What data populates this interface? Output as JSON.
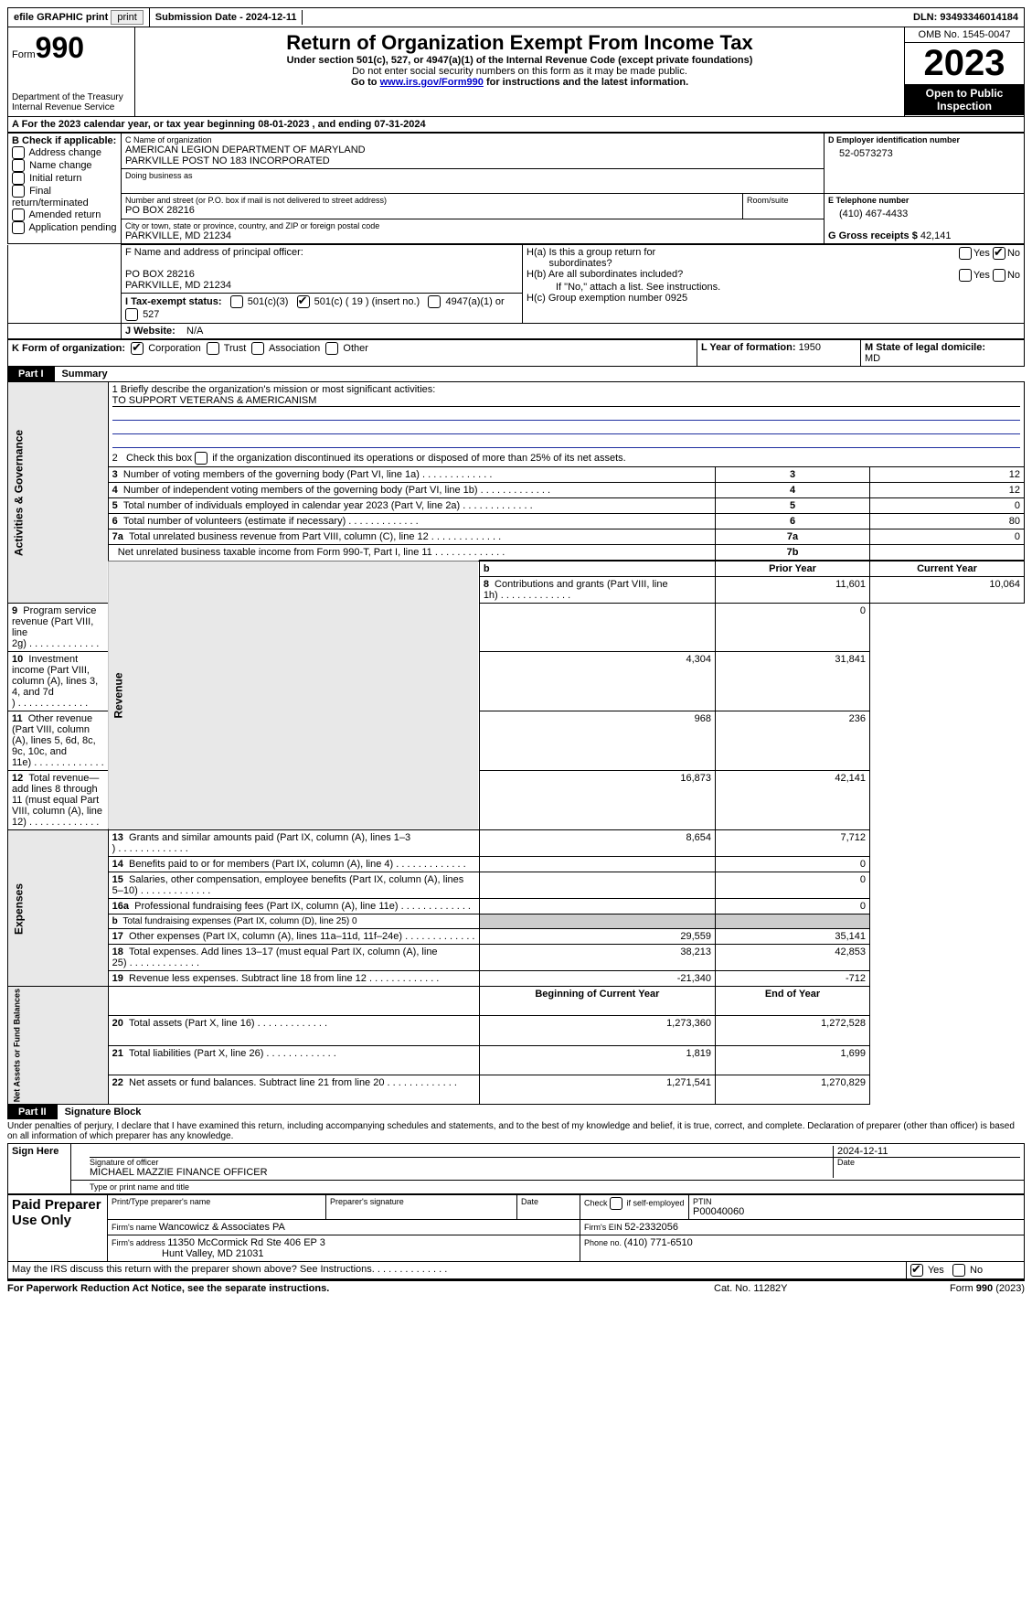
{
  "top": {
    "efile": "efile GRAPHIC print",
    "submission_label": "Submission Date - ",
    "submission_date": "2024-12-11",
    "dln_label": "DLN: ",
    "dln": "93493346014184"
  },
  "hdr": {
    "form_word": "Form",
    "form_num": "990",
    "dept1": "Department of the Treasury",
    "dept2": "Internal Revenue Service",
    "title": "Return of Organization Exempt From Income Tax",
    "sub1": "Under section 501(c), 527, or 4947(a)(1) of the Internal Revenue Code (except private foundations)",
    "sub2": "Do not enter social security numbers on this form as it may be made public.",
    "sub3a": "Go to ",
    "sub3link": "www.irs.gov/Form990",
    "sub3b": " for instructions and the latest information.",
    "omb": "OMB No. 1545-0047",
    "year": "2023",
    "open": "Open to Public Inspection"
  },
  "A": {
    "line": "A For the 2023 calendar year, or tax year beginning ",
    "begin": "08-01-2023",
    "mid": "   , and ending ",
    "end": "07-31-2024"
  },
  "B": {
    "hdr": "B Check if applicable:",
    "opts": [
      "Address change",
      "Name change",
      "Initial return",
      "Final return/terminated",
      "Amended return",
      "Application pending"
    ]
  },
  "C": {
    "name_lbl": "C Name of organization",
    "name1": "AMERICAN LEGION DEPARTMENT OF MARYLAND",
    "name2": "PARKVILLE POST NO 183 INCORPORATED",
    "dba": "Doing business as",
    "street_lbl": "Number and street (or P.O. box if mail is not delivered to street address)",
    "room_lbl": "Room/suite",
    "street": "PO BOX 28216",
    "city_lbl": "City or town, state or province, country, and ZIP or foreign postal code",
    "city": "PARKVILLE, MD  21234"
  },
  "D": {
    "lbl": "D Employer identification number",
    "val": "52-0573273"
  },
  "E": {
    "lbl": "E Telephone number",
    "val": "(410) 467-4433"
  },
  "G": {
    "lbl": "G Gross receipts $ ",
    "val": "42,141"
  },
  "F": {
    "lbl": "F  Name and address of principal officer:",
    "l1": "PO BOX 28216",
    "l2": "PARKVILLE, MD  21234"
  },
  "H": {
    "a1": "H(a)  Is this a group return for",
    "a2": "subordinates?",
    "b1": "H(b)  Are all subordinates included?",
    "bnote": "If \"No,\" attach a list. See instructions.",
    "c": "H(c)  Group exemption number   ",
    "cval": "0925",
    "yes": "Yes",
    "no": "No"
  },
  "I": {
    "lbl": "I    Tax-exempt status:",
    "o1": "501(c)(3)",
    "o2a": "501(c) ( ",
    "o2n": "19",
    "o2b": " ) (insert no.)",
    "o3": "4947(a)(1) or",
    "o4": "527"
  },
  "J": {
    "lbl": "J    Website: ",
    "val": "N/A"
  },
  "K": {
    "lbl": "K Form of organization:",
    "o1": "Corporation",
    "o2": "Trust",
    "o3": "Association",
    "o4": "Other"
  },
  "L": {
    "lbl": "L Year of formation: ",
    "val": "1950"
  },
  "M": {
    "lbl": "M State of legal domicile:",
    "val": "MD"
  },
  "part1": {
    "tag": "Part I",
    "title": "Summary"
  },
  "summary": {
    "q1a": "1   Briefly describe the organization's mission or most significant activities:",
    "q1b": "TO SUPPORT VETERANS & AMERICANISM",
    "q2": "2   Check this box       if the organization discontinued its operations or disposed of more than 25% of its net assets.",
    "rows_gov": [
      {
        "n": "3",
        "t": "Number of voting members of the governing body (Part VI, line 1a)",
        "rn": "3",
        "v": "12"
      },
      {
        "n": "4",
        "t": "Number of independent voting members of the governing body (Part VI, line 1b)",
        "rn": "4",
        "v": "12"
      },
      {
        "n": "5",
        "t": "Total number of individuals employed in calendar year 2023 (Part V, line 2a)",
        "rn": "5",
        "v": "0"
      },
      {
        "n": "6",
        "t": "Total number of volunteers (estimate if necessary)",
        "rn": "6",
        "v": "80"
      },
      {
        "n": "7a",
        "t": "Total unrelated business revenue from Part VIII, column (C), line 12",
        "rn": "7a",
        "v": "0"
      },
      {
        "n": "",
        "t": "Net unrelated business taxable income from Form 990-T, Part I, line 11",
        "rn": "7b",
        "v": ""
      }
    ],
    "hdr_prior": "Prior Year",
    "hdr_curr": "Current Year",
    "rev": [
      {
        "n": "8",
        "t": "Contributions and grants (Part VIII, line 1h)",
        "p": "11,601",
        "c": "10,064"
      },
      {
        "n": "9",
        "t": "Program service revenue (Part VIII, line 2g)",
        "p": "",
        "c": "0"
      },
      {
        "n": "10",
        "t": "Investment income (Part VIII, column (A), lines 3, 4, and 7d )",
        "p": "4,304",
        "c": "31,841"
      },
      {
        "n": "11",
        "t": "Other revenue (Part VIII, column (A), lines 5, 6d, 8c, 9c, 10c, and 11e)",
        "p": "968",
        "c": "236"
      },
      {
        "n": "12",
        "t": "Total revenue—add lines 8 through 11 (must equal Part VIII, column (A), line 12)",
        "p": "16,873",
        "c": "42,141"
      }
    ],
    "exp": [
      {
        "n": "13",
        "t": "Grants and similar amounts paid (Part IX, column (A), lines 1–3 )",
        "p": "8,654",
        "c": "7,712"
      },
      {
        "n": "14",
        "t": "Benefits paid to or for members (Part IX, column (A), line 4)",
        "p": "",
        "c": "0"
      },
      {
        "n": "15",
        "t": "Salaries, other compensation, employee benefits (Part IX, column (A), lines 5–10)",
        "p": "",
        "c": "0"
      },
      {
        "n": "16a",
        "t": "Professional fundraising fees (Part IX, column (A), line 11e)",
        "p": "",
        "c": "0"
      },
      {
        "n": "b",
        "t": "Total fundraising expenses (Part IX, column (D), line 25) 0",
        "p": "GREY",
        "c": "GREY"
      },
      {
        "n": "17",
        "t": "Other expenses (Part IX, column (A), lines 11a–11d, 11f–24e)",
        "p": "29,559",
        "c": "35,141"
      },
      {
        "n": "18",
        "t": "Total expenses. Add lines 13–17 (must equal Part IX, column (A), line 25)",
        "p": "38,213",
        "c": "42,853"
      },
      {
        "n": "19",
        "t": "Revenue less expenses. Subtract line 18 from line 12",
        "p": "-21,340",
        "c": "-712"
      }
    ],
    "hdr_boy": "Beginning of Current Year",
    "hdr_eoy": "End of Year",
    "net": [
      {
        "n": "20",
        "t": "Total assets (Part X, line 16)",
        "p": "1,273,360",
        "c": "1,272,528"
      },
      {
        "n": "21",
        "t": "Total liabilities (Part X, line 26)",
        "p": "1,819",
        "c": "1,699"
      },
      {
        "n": "22",
        "t": "Net assets or fund balances. Subtract line 21 from line 20",
        "p": "1,271,541",
        "c": "1,270,829"
      }
    ],
    "sides": {
      "gov": "Activities & Governance",
      "rev": "Revenue",
      "exp": "Expenses",
      "net": "Net Assets or Fund Balances"
    }
  },
  "part2": {
    "tag": "Part II",
    "title": "Signature Block"
  },
  "sig": {
    "penalty": "Under penalties of perjury, I declare that I have examined this return, including accompanying schedules and statements, and to the best of my knowledge and belief, it is true, correct, and complete. Declaration of preparer (other than officer) is based on all information of which preparer has any knowledge.",
    "sign_here": "Sign Here",
    "date": "2024-12-11",
    "sig_of": "Signature of officer",
    "date_lbl": "Date",
    "officer": "MICHAEL MAZZIE  FINANCE OFFICER",
    "type_lbl": "Type or print name and title",
    "paid": "Paid Preparer Use Only",
    "pname_lbl": "Print/Type preparer's name",
    "psig_lbl": "Preparer's signature",
    "pdate_lbl": "Date",
    "check_self": "Check        if self-employed",
    "ptin_lbl": "PTIN",
    "ptin": "P00040060",
    "firm_name_lbl": "Firm's name    ",
    "firm_name": "Wancowicz & Associates PA",
    "firm_ein_lbl": "Firm's EIN  ",
    "firm_ein": "52-2332056",
    "firm_addr_lbl": "Firm's address ",
    "firm_addr1": "11350 McCormick Rd Ste 406 EP 3",
    "firm_addr2": "Hunt Valley, MD  21031",
    "phone_lbl": "Phone no. ",
    "phone": "(410) 771-6510",
    "discuss": "May the IRS discuss this return with the preparer shown above? See Instructions.",
    "yes": "Yes",
    "no": "No"
  },
  "foot": {
    "l": "For Paperwork Reduction Act Notice, see the separate instructions.",
    "m": "Cat. No. 11282Y",
    "r": "Form 990 (2023)"
  }
}
